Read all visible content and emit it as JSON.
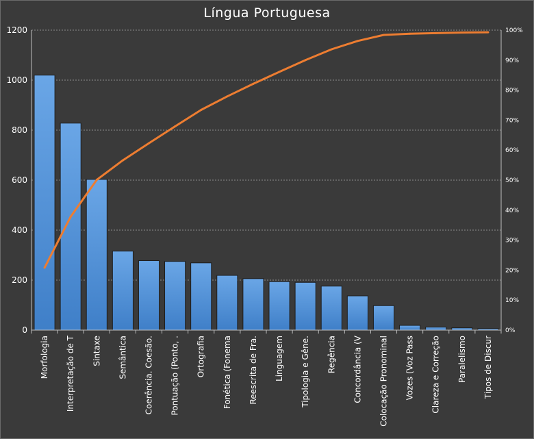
{
  "chart_data": {
    "type": "bar",
    "title": "Língua Portuguesa",
    "categories": [
      "Morfologia",
      "Interpretação de T",
      "Sintaxe",
      "Semântica",
      "Coerência. Coesão.",
      "Pontuação (Ponto, .",
      "Ortografia",
      "Fonética (Fonema",
      "Reescrita de Fra.",
      "Linguagem",
      "Tipologia e Gêne.",
      "Regência",
      "Concordância (V",
      "Colocação Pronominal",
      "Vozes (Voz Pass",
      "Clareza e Correção",
      "Paralelismo",
      "Tipos de Discur"
    ],
    "series": [
      {
        "type": "bar",
        "color": "#4f93dc",
        "values": [
          1020,
          828,
          603,
          316,
          278,
          275,
          269,
          219,
          206,
          194,
          191,
          176,
          137,
          98,
          19,
          12,
          9,
          6
        ]
      },
      {
        "type": "line",
        "axis": "right",
        "color": "#ed7d31",
        "values": [
          20.8,
          37.8,
          50.1,
          56.6,
          62.3,
          67.9,
          73.4,
          77.9,
          82.1,
          86.1,
          90.0,
          93.6,
          96.4,
          98.4,
          98.8,
          99.0,
          99.2,
          99.3
        ]
      }
    ],
    "ylim": [
      0,
      1200
    ],
    "yticks": [
      "0",
      "200",
      "400",
      "600",
      "800",
      "1000",
      "1200"
    ],
    "y2lim": [
      0,
      100
    ],
    "y2ticks": [
      "0%",
      "10%",
      "20%",
      "30%",
      "40%",
      "50%",
      "60%",
      "70%",
      "80%",
      "90%",
      "100%"
    ],
    "grid": true,
    "legend": "none"
  }
}
